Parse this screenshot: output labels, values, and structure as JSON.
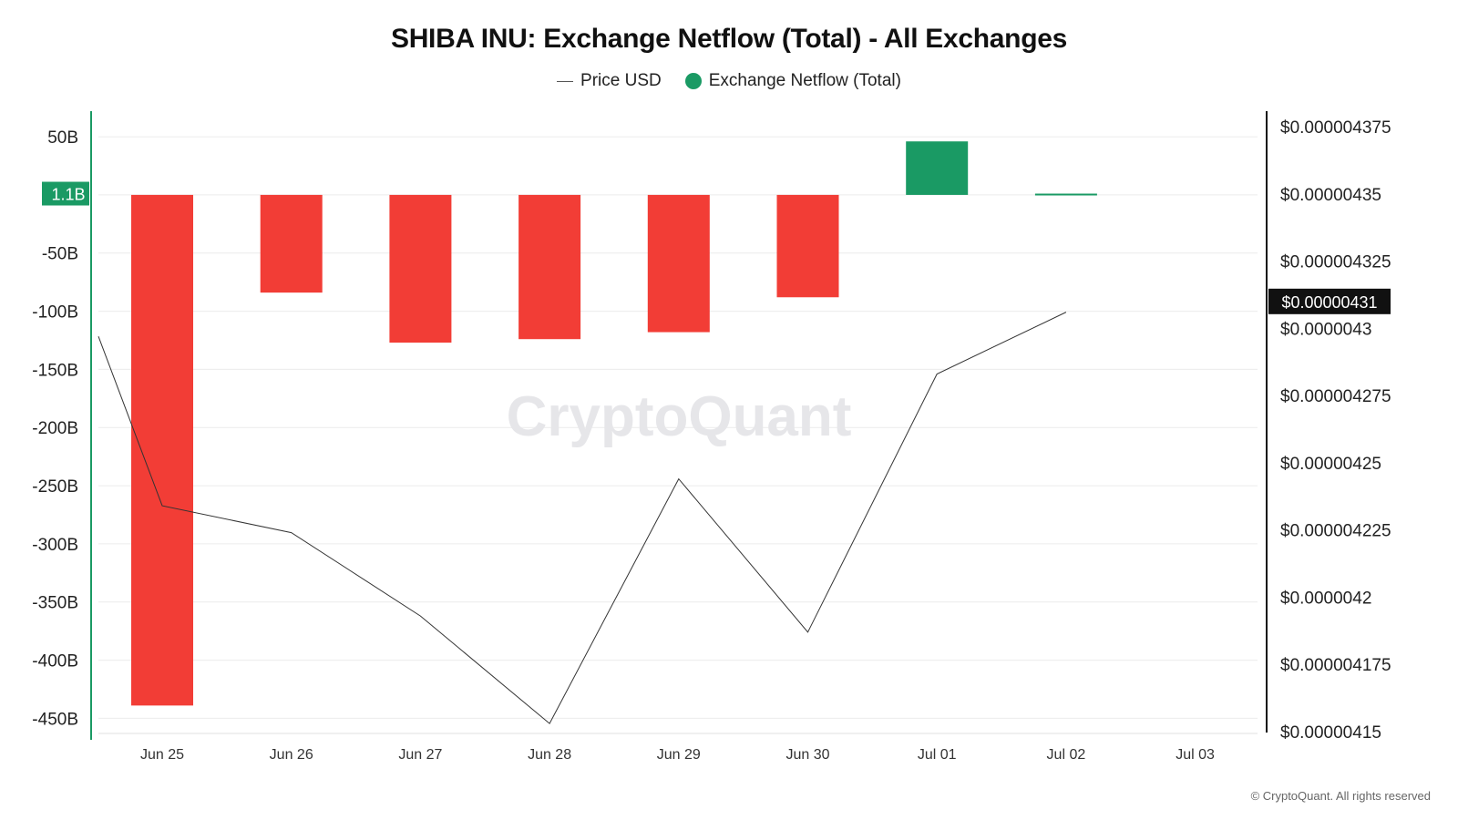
{
  "chart_data": {
    "type": "bar",
    "title": "SHIBA INU: Exchange Netflow (Total) - All Exchanges",
    "legend": {
      "placement": "top-center"
    },
    "categories": [
      "Jun 25",
      "Jun 26",
      "Jun 27",
      "Jun 28",
      "Jun 29",
      "Jun 30",
      "Jul 01",
      "Jul 02"
    ],
    "x_ticks": [
      "Jun 25",
      "Jun 26",
      "Jun 27",
      "Jun 28",
      "Jun 29",
      "Jun 30",
      "Jul 01",
      "Jul 02",
      "Jul 03"
    ],
    "series": [
      {
        "name": "Exchange Netflow (Total)",
        "type": "bar",
        "axis": "left",
        "values": [
          -439,
          -84,
          -127,
          -124,
          -118,
          -88,
          46,
          1.1
        ],
        "positive_color": "#1a9a64",
        "negative_color": "#f23d36"
      },
      {
        "name": "Price USD",
        "type": "line",
        "axis": "right",
        "color": "#333333",
        "x": [
          "Jun 24",
          "Jun 25",
          "Jun 26",
          "Jun 27",
          "Jun 28",
          "Jun 29",
          "Jun 30",
          "Jul 01",
          "Jul 02"
        ],
        "values": [
          4.297e-06,
          4.234e-06,
          4.224e-06,
          4.193e-06,
          4.153e-06,
          4.244e-06,
          4.187e-06,
          4.283e-06,
          4.306e-06
        ]
      }
    ],
    "y_left": {
      "ticks": [
        "50B",
        "-50B",
        "-100B",
        "-150B",
        "-200B",
        "-250B",
        "-300B",
        "-350B",
        "-400B",
        "-450B"
      ],
      "tick_values": [
        50,
        -50,
        -100,
        -150,
        -200,
        -250,
        -300,
        -350,
        -400,
        -450
      ],
      "ylim": [
        -463,
        72
      ],
      "marker_label": "1.1B",
      "marker_value": 1.1,
      "marker_color": "#1a9a64"
    },
    "y_right": {
      "ticks": [
        "$0.000004375",
        "$0.00000435",
        "$0.000004325",
        "$0.0000043",
        "$0.000004275",
        "$0.00000425",
        "$0.000004225",
        "$0.0000042",
        "$0.000004175",
        "$0.00000415"
      ],
      "tick_values": [
        4.375e-06,
        4.35e-06,
        4.325e-06,
        4.3e-06,
        4.275e-06,
        4.25e-06,
        4.225e-06,
        4.2e-06,
        4.175e-06,
        4.15e-06
      ],
      "ylim": [
        4.15e-06,
        4.375e-06
      ],
      "marker_label": "$0.00000431",
      "marker_value": 4.31e-06,
      "marker_color": "#111111"
    },
    "grid": true,
    "watermark": "CryptoQuant"
  },
  "copyright": "© CryptoQuant. All rights reserved"
}
